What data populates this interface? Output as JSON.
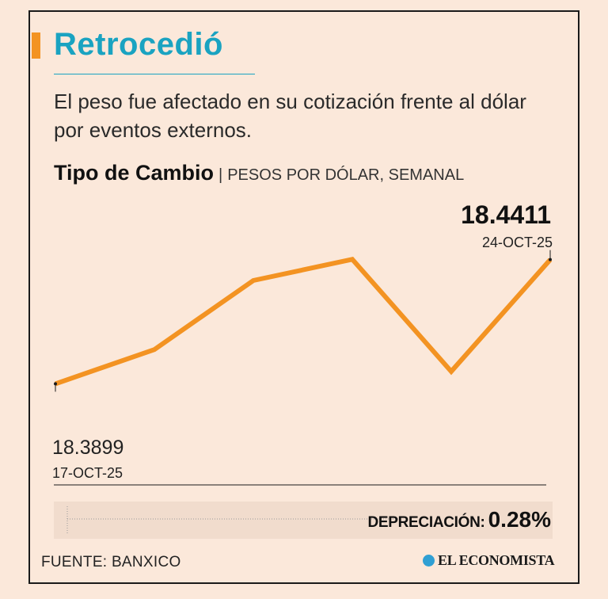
{
  "header": {
    "title": "Retrocedió",
    "subtitle": "El peso fue afectado en su cotización frente al dólar por eventos externos."
  },
  "chart_heading": {
    "main": "Tipo de Cambio",
    "separator": "|",
    "detail": "PESOS POR DÓLAR, SEMANAL"
  },
  "chart_data": {
    "type": "line",
    "series": [
      {
        "values": [
          18.3899,
          18.404,
          18.4325,
          18.4412,
          18.395,
          18.4411
        ]
      }
    ],
    "start_label": {
      "value": "18.3899",
      "date": "17-OCT-25"
    },
    "end_label": {
      "value": "18.4411",
      "date": "24-OCT-25"
    },
    "line_color": "#f39322",
    "ylim": [
      18.375,
      18.4485
    ]
  },
  "summary": {
    "label": "DEPRECIACIÓN:",
    "value": "0.28%"
  },
  "footer": {
    "source": "FUENTE: BANXICO",
    "brand": "EL ECONOMISTA",
    "brand_icon": "el-economista-logo-icon"
  },
  "colors": {
    "background": "#fbe8da",
    "accent_orange": "#f39322",
    "title_blue": "#1aa3c1"
  }
}
